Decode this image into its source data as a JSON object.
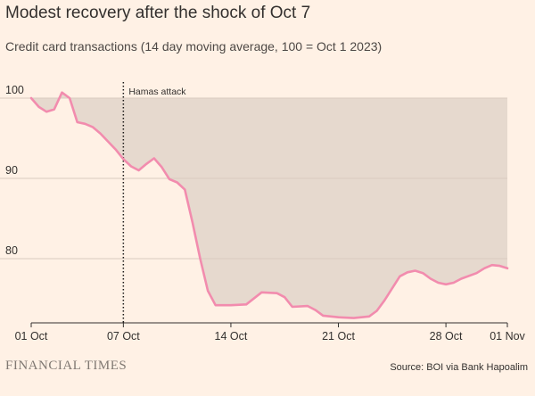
{
  "chart_data": {
    "type": "area",
    "title": "Modest recovery after the shock of Oct 7",
    "subtitle": "Credit card transactions (14 day moving average, 100 = Oct 1 2023)",
    "xlabel": "",
    "ylabel": "",
    "x_ticks": [
      "01 Oct",
      "07 Oct",
      "14 Oct",
      "21 Oct",
      "28 Oct",
      "01 Nov"
    ],
    "y_ticks": [
      100,
      90,
      80
    ],
    "ylim": [
      72,
      100
    ],
    "xlim": [
      "2023-10-01",
      "2023-11-01"
    ],
    "baseline": 100,
    "annotation": {
      "label": "Hamas attack",
      "date": "2023-10-07"
    },
    "series": [
      {
        "color": "#f28cae",
        "points": [
          [
            "2023-10-01",
            100.0
          ],
          [
            "2023-10-01 12:00",
            98.9
          ],
          [
            "2023-10-02",
            98.3
          ],
          [
            "2023-10-02 12:00",
            98.6
          ],
          [
            "2023-10-03",
            100.7
          ],
          [
            "2023-10-03 12:00",
            100.0
          ],
          [
            "2023-10-04",
            97.0
          ],
          [
            "2023-10-04 12:00",
            96.8
          ],
          [
            "2023-10-05",
            96.4
          ],
          [
            "2023-10-05 12:00",
            95.6
          ],
          [
            "2023-10-06",
            94.6
          ],
          [
            "2023-10-06 12:00",
            93.6
          ],
          [
            "2023-10-07",
            92.4
          ],
          [
            "2023-10-07 12:00",
            91.5
          ],
          [
            "2023-10-08",
            91.0
          ],
          [
            "2023-10-08 12:00",
            91.8
          ],
          [
            "2023-10-09",
            92.5
          ],
          [
            "2023-10-09 12:00",
            91.4
          ],
          [
            "2023-10-10",
            89.9
          ],
          [
            "2023-10-10 12:00",
            89.5
          ],
          [
            "2023-10-11",
            88.6
          ],
          [
            "2023-10-11 12:00",
            84.5
          ],
          [
            "2023-10-12",
            80.0
          ],
          [
            "2023-10-12 12:00",
            76.0
          ],
          [
            "2023-10-13",
            74.2
          ],
          [
            "2023-10-14",
            74.2
          ],
          [
            "2023-10-15",
            74.3
          ],
          [
            "2023-10-16",
            75.8
          ],
          [
            "2023-10-17",
            75.7
          ],
          [
            "2023-10-17 12:00",
            75.2
          ],
          [
            "2023-10-18",
            74.0
          ],
          [
            "2023-10-19",
            74.1
          ],
          [
            "2023-10-19 12:00",
            73.6
          ],
          [
            "2023-10-20",
            72.9
          ],
          [
            "2023-10-21",
            72.7
          ],
          [
            "2023-10-22",
            72.6
          ],
          [
            "2023-10-23",
            72.8
          ],
          [
            "2023-10-23 12:00",
            73.5
          ],
          [
            "2023-10-24",
            74.8
          ],
          [
            "2023-10-24 12:00",
            76.3
          ],
          [
            "2023-10-25",
            77.8
          ],
          [
            "2023-10-25 12:00",
            78.3
          ],
          [
            "2023-10-26",
            78.5
          ],
          [
            "2023-10-26 12:00",
            78.2
          ],
          [
            "2023-10-27",
            77.5
          ],
          [
            "2023-10-27 12:00",
            77.0
          ],
          [
            "2023-10-28",
            76.8
          ],
          [
            "2023-10-28 12:00",
            77.0
          ],
          [
            "2023-10-29",
            77.5
          ],
          [
            "2023-10-30",
            78.2
          ],
          [
            "2023-10-30 12:00",
            78.8
          ],
          [
            "2023-10-31",
            79.2
          ],
          [
            "2023-10-31 12:00",
            79.1
          ],
          [
            "2023-11-01",
            78.8
          ]
        ]
      }
    ],
    "grid": true,
    "colors": {
      "line": "#f28cae",
      "gap_fill": "#e6d9ce",
      "background": "#fff1e5",
      "grid": "#d9cbc0"
    }
  },
  "footer": {
    "brand": "FINANCIAL TIMES",
    "source": "Source: BOI via Bank Hapoalim"
  }
}
